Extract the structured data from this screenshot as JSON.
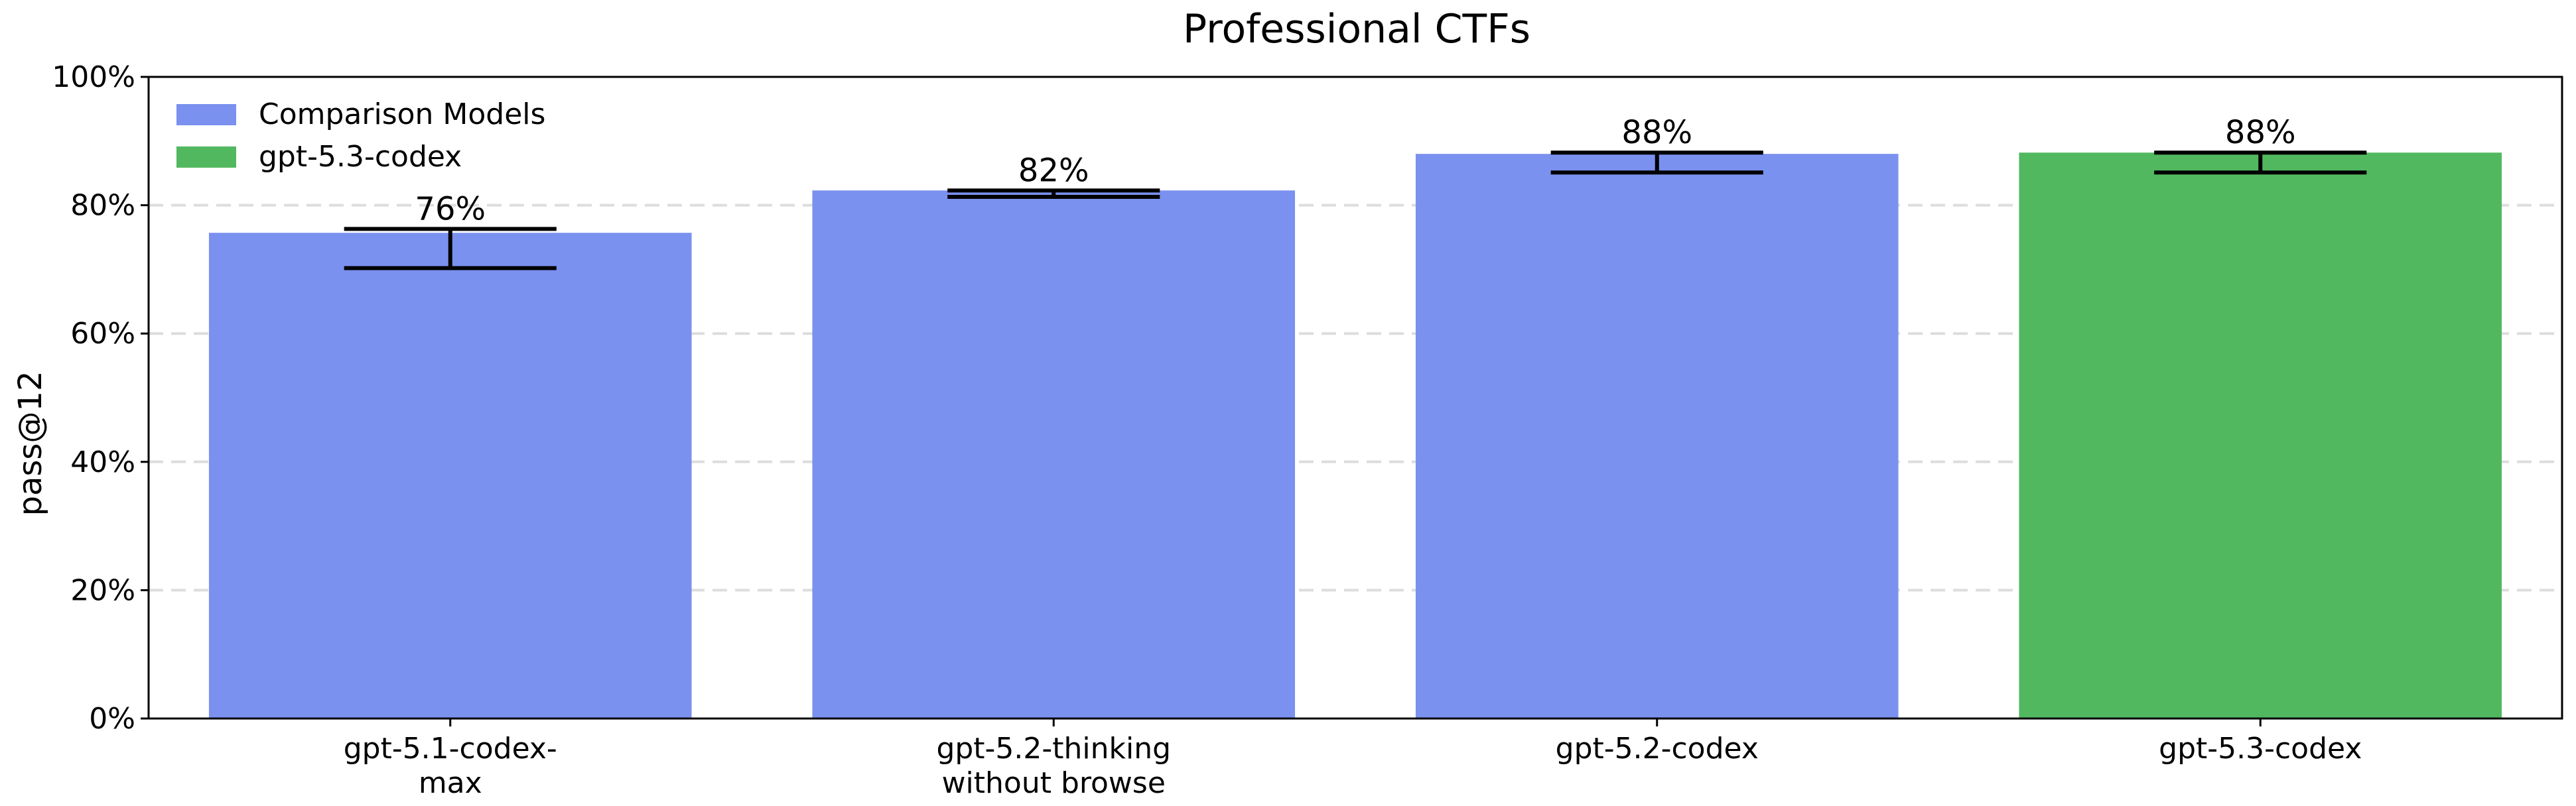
{
  "chart_data": {
    "type": "bar",
    "title": "Professional CTFs",
    "ylabel": "pass@12",
    "ylim": [
      0,
      100
    ],
    "yticks": [
      0,
      20,
      40,
      60,
      80,
      100
    ],
    "ytick_suffix": "%",
    "grid": true,
    "legend_position": "top-left",
    "legend": [
      {
        "name": "Comparison Models",
        "color": "#7a91ef"
      },
      {
        "name": "gpt-5.3-codex",
        "color": "#52b860"
      }
    ],
    "categories": [
      [
        "gpt-5.1-codex-",
        "max"
      ],
      [
        "gpt-5.2-thinking",
        "without browse"
      ],
      [
        "gpt-5.2-codex"
      ],
      [
        "gpt-5.3-codex"
      ]
    ],
    "values": [
      75.7,
      82.3,
      88.0,
      88.2
    ],
    "error_low": [
      70.2,
      81.3,
      85.1,
      85.1
    ],
    "error_high": [
      76.3,
      82.3,
      88.2,
      88.2
    ],
    "data_labels": [
      "76%",
      "82%",
      "88%",
      "88%"
    ],
    "bar_colors": [
      "#7a91ef",
      "#7a91ef",
      "#7a91ef",
      "#52b860"
    ]
  }
}
